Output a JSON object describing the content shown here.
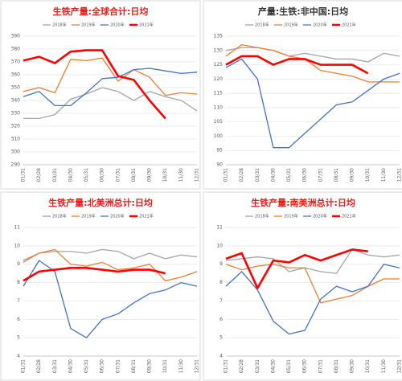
{
  "chart_data": [
    {
      "type": "line",
      "title": "生铁产量:全球合计:日均",
      "title_color": "#e0201b",
      "categories": [
        "01/31",
        "02/28",
        "03/31",
        "04/30",
        "05/31",
        "06/30",
        "07/31",
        "08/31",
        "09/30",
        "10/31",
        "11/30",
        "12/31"
      ],
      "ylim": [
        290,
        390
      ],
      "yticks": [
        290,
        300,
        310,
        320,
        330,
        340,
        350,
        360,
        370,
        380,
        390
      ],
      "grid": true,
      "series": [
        {
          "name": "2018年",
          "color": "#a5a5a5",
          "width": 1.3,
          "values": [
            326,
            326,
            329,
            341,
            345,
            350,
            347,
            340,
            347,
            343,
            340,
            332
          ]
        },
        {
          "name": "2019年",
          "color": "#ed7d31",
          "width": 1.3,
          "values": [
            347,
            350,
            346,
            372,
            371,
            373,
            355,
            364,
            358,
            344,
            346,
            345
          ]
        },
        {
          "name": "2020年",
          "color": "#4472c4",
          "width": 1.3,
          "values": [
            343,
            347,
            336,
            336,
            346,
            357,
            358,
            364,
            365,
            363,
            361,
            362
          ]
        },
        {
          "name": "2021年",
          "color": "#ff0000",
          "width": 2.6,
          "values": [
            371,
            374,
            369,
            378,
            379,
            379,
            359,
            356,
            340,
            326,
            null,
            null
          ]
        }
      ]
    },
    {
      "type": "line",
      "title": "产量:生铁:非中国:日均",
      "title_color": "#333333",
      "categories": [
        "01/31",
        "02/28",
        "03/31",
        "04/30",
        "05/31",
        "06/30",
        "07/31",
        "08/31",
        "09/30",
        "10/31",
        "11/30",
        "12/31"
      ],
      "ylim": [
        90,
        135
      ],
      "yticks": [
        90,
        95,
        100,
        105,
        110,
        115,
        120,
        125,
        130,
        135
      ],
      "grid": true,
      "series": [
        {
          "name": "2018年",
          "color": "#a5a5a5",
          "width": 1.3,
          "values": [
            130,
            131,
            131,
            130,
            128,
            129,
            128,
            127,
            127,
            126,
            129,
            128
          ]
        },
        {
          "name": "2019年",
          "color": "#ed7d31",
          "width": 1.3,
          "values": [
            128,
            132,
            131,
            130,
            128,
            127,
            123,
            122,
            121,
            119,
            119,
            119
          ]
        },
        {
          "name": "2020年",
          "color": "#4472c4",
          "width": 1.3,
          "values": [
            124,
            127,
            120,
            96,
            96,
            101,
            106,
            111,
            112,
            116,
            120,
            122
          ]
        },
        {
          "name": "2021年",
          "color": "#ff0000",
          "width": 2.6,
          "values": [
            125,
            128,
            128,
            125,
            127,
            127,
            125,
            125,
            125,
            122,
            null,
            null
          ]
        }
      ]
    },
    {
      "type": "line",
      "title": "生铁产量:北美洲总计:日均",
      "title_color": "#e0201b",
      "categories": [
        "01/31",
        "02/28",
        "03/31",
        "04/30",
        "05/31",
        "06/30",
        "07/31",
        "08/31",
        "09/30",
        "10/31",
        "11/30",
        "12/31"
      ],
      "ylim": [
        4,
        11
      ],
      "yticks": [
        4,
        5,
        6,
        7,
        8,
        9,
        10,
        11
      ],
      "grid": true,
      "series": [
        {
          "name": "2018年",
          "color": "#a5a5a5",
          "width": 1.3,
          "values": [
            9.1,
            9.6,
            9.7,
            9.7,
            9.6,
            9.8,
            9.7,
            9.3,
            9.6,
            9.3,
            9.5,
            9.4
          ]
        },
        {
          "name": "2019年",
          "color": "#ed7d31",
          "width": 1.3,
          "values": [
            9.2,
            9.6,
            9.8,
            9.0,
            8.9,
            9.1,
            8.7,
            8.8,
            9.0,
            8.1,
            8.3,
            8.6
          ]
        },
        {
          "name": "2020年",
          "color": "#4472c4",
          "width": 1.3,
          "values": [
            7.8,
            9.2,
            8.6,
            5.5,
            5.0,
            6.0,
            6.3,
            6.9,
            7.4,
            7.6,
            8.0,
            7.8
          ]
        },
        {
          "name": "2021年",
          "color": "#ff0000",
          "width": 2.6,
          "values": [
            8.1,
            8.6,
            8.7,
            8.8,
            8.8,
            8.7,
            8.6,
            8.7,
            8.7,
            8.5,
            null,
            null
          ]
        }
      ]
    },
    {
      "type": "line",
      "title": "生铁产量:南美洲总计:日均",
      "title_color": "#e0201b",
      "categories": [
        "01/31",
        "02/28",
        "03/31",
        "04/30",
        "05/31",
        "06/30",
        "07/31",
        "08/31",
        "09/30",
        "10/31",
        "11/30",
        "12/31"
      ],
      "ylim": [
        4,
        11
      ],
      "yticks": [
        4,
        5,
        6,
        7,
        8,
        9,
        10,
        11
      ],
      "grid": true,
      "series": [
        {
          "name": "2018年",
          "color": "#a5a5a5",
          "width": 1.3,
          "values": [
            9.2,
            9.3,
            9.4,
            9.3,
            8.6,
            8.8,
            8.6,
            8.5,
            9.8,
            9.5,
            9.4,
            9.5
          ]
        },
        {
          "name": "2019年",
          "color": "#ed7d31",
          "width": 1.3,
          "values": [
            9.0,
            8.7,
            8.9,
            9.0,
            8.8,
            8.8,
            6.9,
            7.1,
            7.3,
            7.8,
            8.2,
            8.2
          ]
        },
        {
          "name": "2020年",
          "color": "#4472c4",
          "width": 1.3,
          "values": [
            7.8,
            8.6,
            7.6,
            5.9,
            5.2,
            5.4,
            7.1,
            7.8,
            7.5,
            7.8,
            9.0,
            8.8
          ]
        },
        {
          "name": "2021年",
          "color": "#ff0000",
          "width": 2.6,
          "values": [
            9.3,
            9.6,
            7.7,
            9.2,
            9.1,
            9.5,
            9.2,
            9.5,
            9.8,
            9.7,
            null,
            null
          ]
        }
      ]
    }
  ]
}
